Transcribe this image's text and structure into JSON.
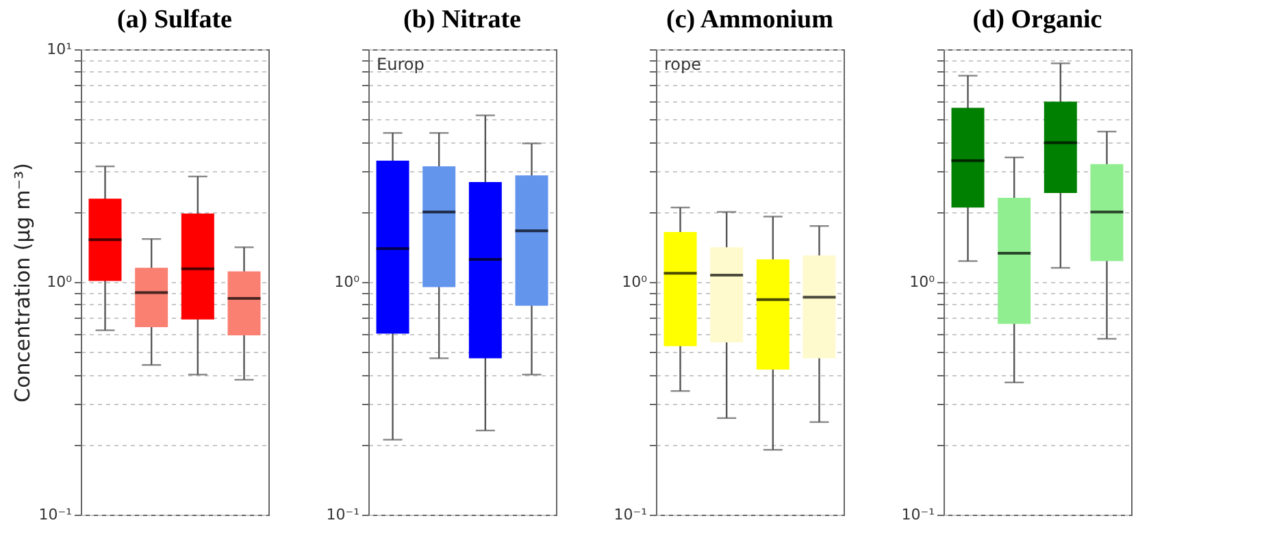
{
  "chart_data": [
    {
      "type": "box",
      "title": "(a) Sulfate",
      "ylabel": "Concentration (μg m⁻³)",
      "categories": [
        null,
        null,
        null,
        null
      ],
      "log": "y",
      "grid": "y",
      "tick_labels": "y",
      "colors": [
        "#ff0000",
        "#fa8072",
        "#ff0000",
        "#fa8072"
      ],
      "ylim": [
        0.1,
        10
      ],
      "yticks": [
        {
          "value": 0.1,
          "label": "10⁻¹"
        },
        {
          "value": 0.2,
          "label": null
        },
        {
          "value": 0.3,
          "label": null
        },
        {
          "value": 0.4,
          "label": null
        },
        {
          "value": 0.5,
          "label": null
        },
        {
          "value": 0.6,
          "label": null
        },
        {
          "value": 0.7,
          "label": null
        },
        {
          "value": 0.8,
          "label": null
        },
        {
          "value": 0.9,
          "label": null
        },
        {
          "value": 1,
          "label": "10⁰"
        },
        {
          "value": 2,
          "label": null
        },
        {
          "value": 3,
          "label": null
        },
        {
          "value": 4,
          "label": null
        },
        {
          "value": 5,
          "label": null
        },
        {
          "value": 6,
          "label": null
        },
        {
          "value": 7,
          "label": null
        },
        {
          "value": 8,
          "label": null
        },
        {
          "value": 9,
          "label": null
        },
        {
          "value": 10,
          "label": "10¹"
        }
      ],
      "boxes": [
        {
          "low": 0.62,
          "q1": 1.01,
          "median": 1.52,
          "q3": 2.28,
          "high": 3.14
        },
        {
          "low": 0.44,
          "q1": 0.64,
          "median": 0.9,
          "q3": 1.15,
          "high": 1.53
        },
        {
          "low": 0.4,
          "q1": 0.69,
          "median": 1.14,
          "q3": 1.97,
          "high": 2.84
        },
        {
          "low": 0.38,
          "q1": 0.59,
          "median": 0.85,
          "q3": 1.11,
          "high": 1.41
        }
      ]
    },
    {
      "type": "box",
      "title": "(b) Nitrate",
      "annotations": [
        "Europ"
      ],
      "categories": [
        null,
        null,
        null,
        null
      ],
      "log": "y",
      "grid": "y",
      "tick_labels": "y",
      "colors": [
        "#0000ff",
        "#6495ed",
        "#0000ff",
        "#6495ed"
      ],
      "ylim": [
        0.1,
        10
      ],
      "yticks": [
        {
          "value": 0.1,
          "label": "10⁻¹"
        },
        {
          "value": 0.2,
          "label": null
        },
        {
          "value": 0.3,
          "label": null
        },
        {
          "value": 0.4,
          "label": null
        },
        {
          "value": 0.5,
          "label": null
        },
        {
          "value": 0.6,
          "label": null
        },
        {
          "value": 0.7,
          "label": null
        },
        {
          "value": 0.8,
          "label": null
        },
        {
          "value": 0.9,
          "label": null
        },
        {
          "value": 1,
          "label": "10⁰"
        },
        {
          "value": 2,
          "label": null
        },
        {
          "value": 3,
          "label": null
        },
        {
          "value": 4,
          "label": null
        },
        {
          "value": 5,
          "label": null
        },
        {
          "value": 6,
          "label": null
        },
        {
          "value": 7,
          "label": null
        },
        {
          "value": 8,
          "label": null
        },
        {
          "value": 9,
          "label": null
        },
        {
          "value": 10,
          "label": null
        }
      ],
      "boxes": [
        {
          "low": 0.21,
          "q1": 0.6,
          "median": 1.39,
          "q3": 3.32,
          "high": 4.37
        },
        {
          "low": 0.47,
          "q1": 0.95,
          "median": 2.0,
          "q3": 3.14,
          "high": 4.37
        },
        {
          "low": 0.23,
          "q1": 0.47,
          "median": 1.25,
          "q3": 2.69,
          "high": 5.2
        },
        {
          "low": 0.4,
          "q1": 0.79,
          "median": 1.66,
          "q3": 2.87,
          "high": 3.94
        }
      ]
    },
    {
      "type": "box",
      "title": "(c) Ammonium",
      "annotations": [
        "rope"
      ],
      "categories": [
        null,
        null,
        null,
        null
      ],
      "log": "y",
      "grid": "y",
      "tick_labels": "y",
      "colors": [
        "#ffff00",
        "#fffacd",
        "#ffff00",
        "#fffacd"
      ],
      "ylim": [
        0.1,
        10
      ],
      "yticks": [
        {
          "value": 0.1,
          "label": "10⁻¹"
        },
        {
          "value": 0.2,
          "label": null
        },
        {
          "value": 0.3,
          "label": null
        },
        {
          "value": 0.4,
          "label": null
        },
        {
          "value": 0.5,
          "label": null
        },
        {
          "value": 0.6,
          "label": null
        },
        {
          "value": 0.7,
          "label": null
        },
        {
          "value": 0.8,
          "label": null
        },
        {
          "value": 0.9,
          "label": null
        },
        {
          "value": 1,
          "label": "10⁰"
        },
        {
          "value": 2,
          "label": null
        },
        {
          "value": 3,
          "label": null
        },
        {
          "value": 4,
          "label": null
        },
        {
          "value": 5,
          "label": null
        },
        {
          "value": 6,
          "label": null
        },
        {
          "value": 7,
          "label": null
        },
        {
          "value": 8,
          "label": null
        },
        {
          "value": 9,
          "label": null
        },
        {
          "value": 10,
          "label": null
        }
      ],
      "boxes": [
        {
          "low": 0.34,
          "q1": 0.53,
          "median": 1.09,
          "q3": 1.64,
          "high": 2.09
        },
        {
          "low": 0.26,
          "q1": 0.55,
          "median": 1.07,
          "q3": 1.41,
          "high": 2.0
        },
        {
          "low": 0.19,
          "q1": 0.42,
          "median": 0.84,
          "q3": 1.25,
          "high": 1.91
        },
        {
          "low": 0.25,
          "q1": 0.47,
          "median": 0.86,
          "q3": 1.3,
          "high": 1.74
        }
      ]
    },
    {
      "type": "box",
      "title": "(d) Organic",
      "categories": [
        null,
        null,
        null,
        null
      ],
      "log": "y",
      "grid": "y",
      "tick_labels": "y",
      "colors": [
        "#008000",
        "#90ee90",
        "#008000",
        "#90ee90"
      ],
      "ylim": [
        0.1,
        10
      ],
      "yticks": [
        {
          "value": 0.1,
          "label": "10⁻¹"
        },
        {
          "value": 0.2,
          "label": null
        },
        {
          "value": 0.3,
          "label": null
        },
        {
          "value": 0.4,
          "label": null
        },
        {
          "value": 0.5,
          "label": null
        },
        {
          "value": 0.6,
          "label": null
        },
        {
          "value": 0.7,
          "label": null
        },
        {
          "value": 0.8,
          "label": null
        },
        {
          "value": 0.9,
          "label": null
        },
        {
          "value": 1,
          "label": "10⁰"
        },
        {
          "value": 2,
          "label": null
        },
        {
          "value": 3,
          "label": null
        },
        {
          "value": 4,
          "label": null
        },
        {
          "value": 5,
          "label": null
        },
        {
          "value": 6,
          "label": null
        },
        {
          "value": 7,
          "label": null
        },
        {
          "value": 8,
          "label": null
        },
        {
          "value": 9,
          "label": null
        },
        {
          "value": 10,
          "label": null
        }
      ],
      "boxes": [
        {
          "low": 1.23,
          "q1": 2.09,
          "median": 3.32,
          "q3": 5.6,
          "high": 7.7
        },
        {
          "low": 0.37,
          "q1": 0.66,
          "median": 1.33,
          "q3": 2.3,
          "high": 3.43
        },
        {
          "low": 1.15,
          "q1": 2.41,
          "median": 3.97,
          "q3": 5.96,
          "high": 8.7
        },
        {
          "low": 0.57,
          "q1": 1.23,
          "median": 2.0,
          "q3": 3.21,
          "high": 4.43
        }
      ]
    }
  ]
}
